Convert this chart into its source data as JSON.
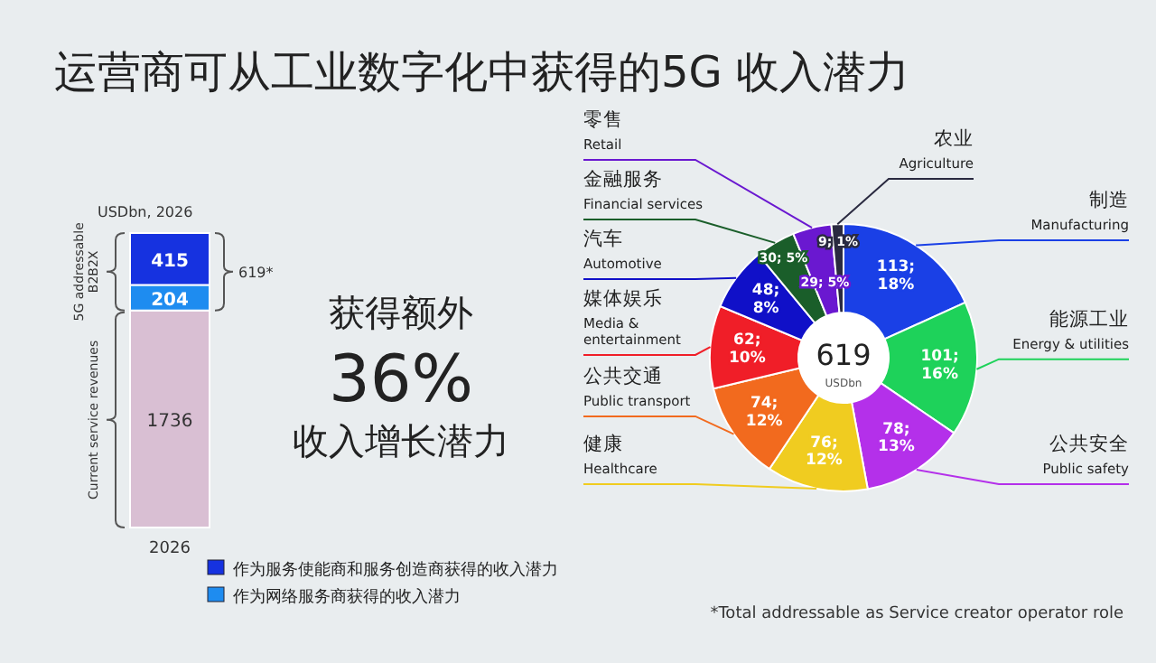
{
  "chart_data": [
    {
      "type": "bar",
      "title": "运营商可从工业数字化中获得的5G 收入潜力",
      "subtitle": "USDbn, 2026",
      "stacked": true,
      "data_labels": true,
      "legend": "bottom",
      "categories": [
        "2026"
      ],
      "series": [
        {
          "color": "#d9bfd3",
          "values": [
            1736
          ]
        },
        {
          "name": "作为网络服务商获得的收入潜力",
          "color": "#1e8cf0",
          "values": [
            204
          ]
        },
        {
          "name": "作为服务使能商和服务创造商获得的收入潜力",
          "color": "#1632e0",
          "values": [
            415
          ]
        }
      ],
      "annotations": [
        "5G addressable\nB2B2X",
        "Current service revenues",
        "619*",
        "获得额外",
        "36%",
        "收入增长潜力"
      ]
    },
    {
      "type": "donut",
      "categories": [
        "制造\nManufacturing",
        "能源工业\nEnergy & utilities",
        "公共安全\nPublic safety",
        "健康\nHealthcare",
        "公共交通\nPublic transport",
        "媒体娱乐\nMedia &\nentertainment",
        "汽车\nAutomotive",
        "金融服务\nFinancial services",
        "零售\nRetail",
        "农业\nAgriculture"
      ],
      "values": [
        113,
        101,
        78,
        76,
        74,
        62,
        48,
        30,
        29,
        9
      ],
      "value_labels": [
        "113; 18%",
        "101; 16%",
        "78; 13%",
        "76; 12%",
        "74; 12%",
        "62; 10%",
        "48; 8%",
        "30; 5%",
        "29; 5%",
        "9; 1%"
      ],
      "colors": [
        "#1a40e6",
        "#1ed25a",
        "#b430ea",
        "#f0cc20",
        "#f26a1e",
        "#f01e28",
        "#1010c8",
        "#1a5e2a",
        "#6a18d0",
        "#2a2a40"
      ],
      "annotations": [
        "619",
        "USDbn",
        "*Total addressable as Service creator operator role"
      ]
    }
  ]
}
